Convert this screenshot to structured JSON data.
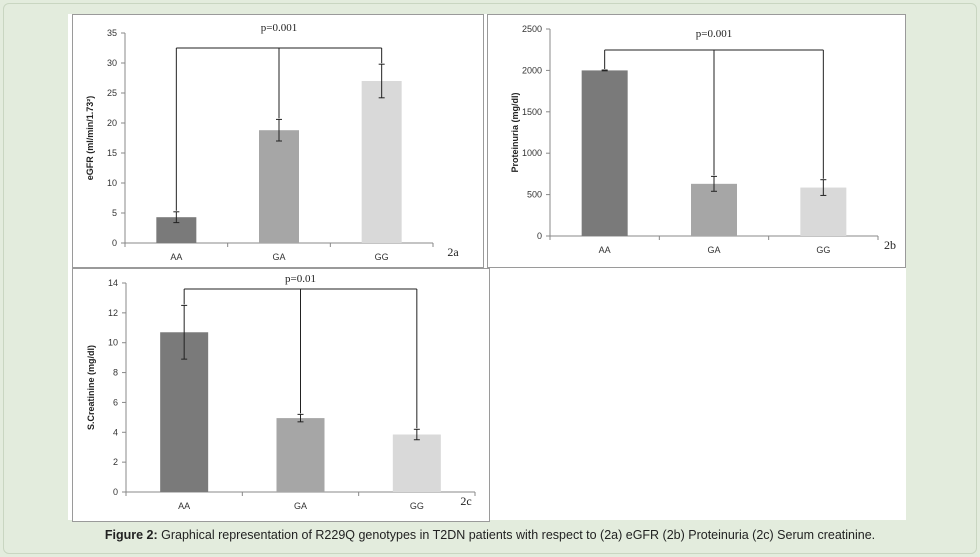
{
  "caption": {
    "label": "Figure 2:",
    "text": "Graphical representation of R229Q genotypes in T2DN patients with respect to (2a) eGFR (2b) Proteinuria (2c) Serum creatinine."
  },
  "colors": {
    "AA": "#7a7a7a",
    "GA": "#a6a6a6",
    "GG": "#d9d9d9"
  },
  "chart_data": [
    {
      "type": "bar",
      "panel_label": "2a",
      "categories": [
        "AA",
        "GA",
        "GG"
      ],
      "values": [
        4.3,
        18.8,
        27.0
      ],
      "errors": [
        0.9,
        1.8,
        2.8
      ],
      "ylabel": "eGFR (ml/min/1.73²)",
      "ylim": [
        0,
        35
      ],
      "yticks": [
        "0",
        "5",
        "10",
        "15",
        "20",
        "25",
        "30",
        "35"
      ],
      "annotation": "p=0.001",
      "grid": false
    },
    {
      "type": "bar",
      "panel_label": "2b",
      "categories": [
        "AA",
        "GA",
        "GG"
      ],
      "values": [
        2000,
        630,
        585
      ],
      "errors": [
        5,
        90,
        95
      ],
      "ylabel": "Proteinuria (mg/dl)",
      "ylim": [
        0,
        2500
      ],
      "yticks": [
        "0",
        "500",
        "1000",
        "1500",
        "2000",
        "2500"
      ],
      "annotation": "p=0.001",
      "grid": false
    },
    {
      "type": "bar",
      "panel_label": "2c",
      "categories": [
        "AA",
        "GA",
        "GG"
      ],
      "values": [
        10.7,
        4.95,
        3.85
      ],
      "errors": [
        1.8,
        0.25,
        0.35
      ],
      "ylabel": "S.Creatinine (mg/dl)",
      "ylim": [
        0,
        14
      ],
      "yticks": [
        "0",
        "2",
        "4",
        "6",
        "8",
        "10",
        "12",
        "14"
      ],
      "annotation": "p=0.01",
      "grid": false
    }
  ]
}
